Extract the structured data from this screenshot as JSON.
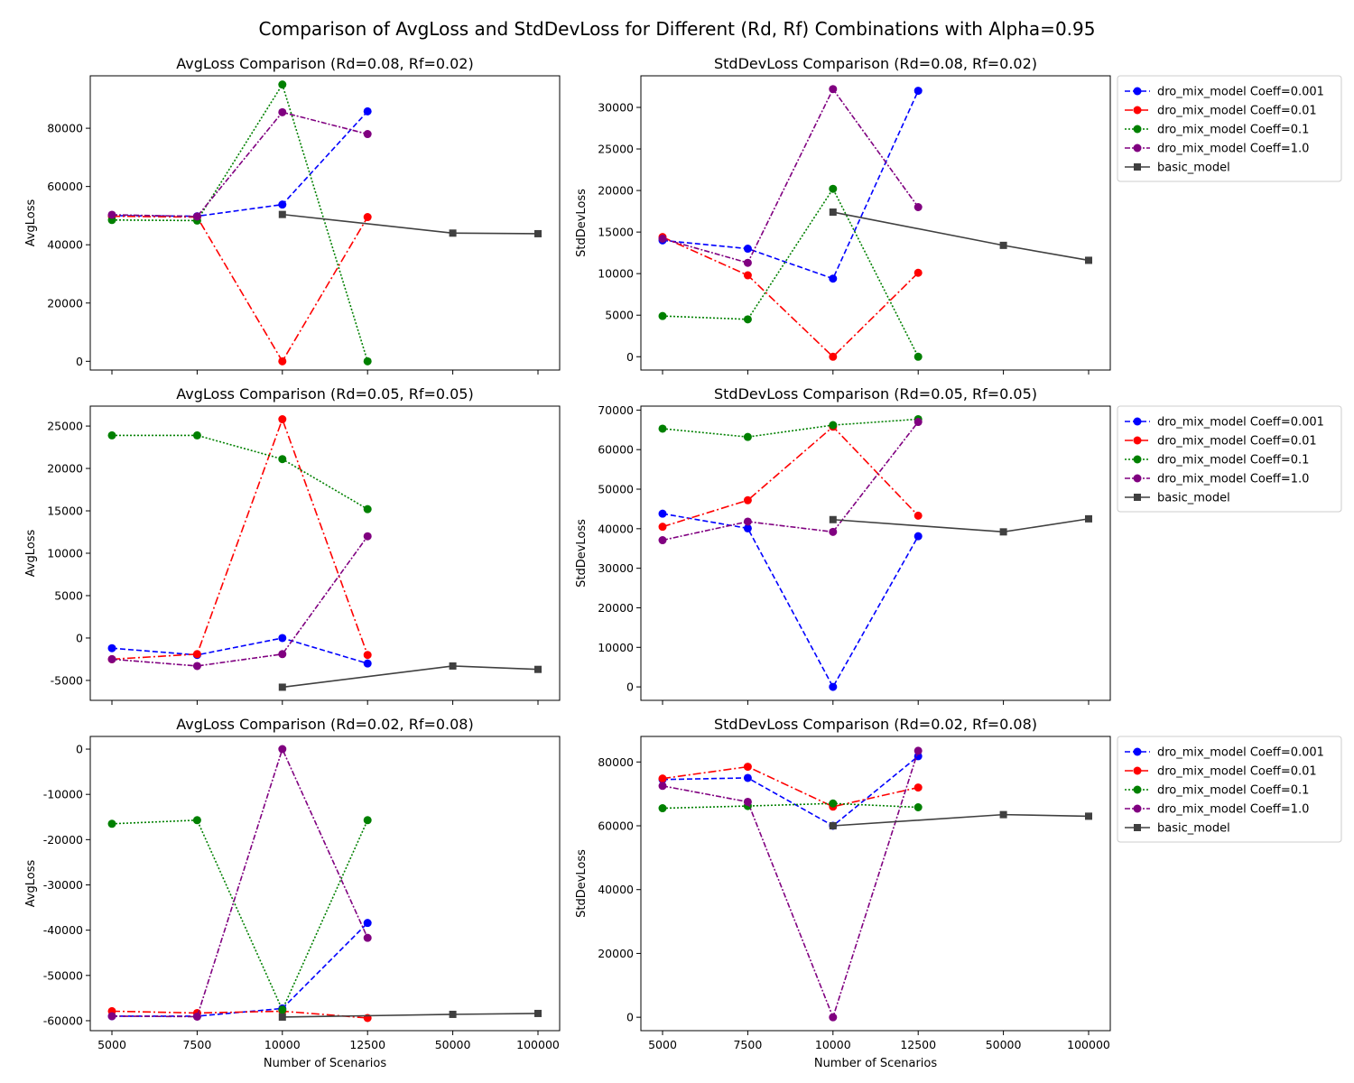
{
  "figure": {
    "title": "Comparison of AvgLoss and StdDevLoss for Different (Rd, Rf) Combinations with Alpha=0.95"
  },
  "chart_data": [
    {
      "type": "line",
      "row": 0,
      "col": 0,
      "title": "AvgLoss Comparison (Rd=0.08, Rf=0.02)",
      "xlabel": "",
      "ylabel": "AvgLoss",
      "categories": [
        "5000",
        "7500",
        "10000",
        "12500",
        "50000",
        "100000"
      ],
      "ylim": [
        -3000,
        98000
      ],
      "yticks": [
        0,
        20000,
        40000,
        60000,
        80000
      ],
      "legend": false,
      "series": [
        {
          "name": "dro_mix_model Coeff=0.001",
          "values": [
            50000,
            49800,
            53800,
            85800,
            null,
            null
          ]
        },
        {
          "name": "dro_mix_model Coeff=0.01",
          "values": [
            49800,
            49500,
            0,
            49500,
            null,
            null
          ]
        },
        {
          "name": "dro_mix_model Coeff=0.1",
          "values": [
            48500,
            48300,
            95000,
            0,
            null,
            null
          ]
        },
        {
          "name": "dro_mix_model Coeff=1.0",
          "values": [
            50300,
            49700,
            85500,
            78000,
            null,
            null
          ]
        },
        {
          "name": "basic_model",
          "values": [
            null,
            null,
            50400,
            null,
            44000,
            43800
          ]
        }
      ]
    },
    {
      "type": "line",
      "row": 0,
      "col": 1,
      "title": "StdDevLoss Comparison (Rd=0.08, Rf=0.02)",
      "xlabel": "",
      "ylabel": "StdDevLoss",
      "categories": [
        "5000",
        "7500",
        "10000",
        "12500",
        "50000",
        "100000"
      ],
      "ylim": [
        -1600,
        33800
      ],
      "yticks": [
        0,
        5000,
        10000,
        15000,
        20000,
        25000,
        30000
      ],
      "legend": true,
      "legend_loc": "outside upper right",
      "series": [
        {
          "name": "dro_mix_model Coeff=0.001",
          "values": [
            14000,
            13000,
            9400,
            32000,
            null,
            null
          ]
        },
        {
          "name": "dro_mix_model Coeff=0.01",
          "values": [
            14400,
            9800,
            0,
            10100,
            null,
            null
          ]
        },
        {
          "name": "dro_mix_model Coeff=0.1",
          "values": [
            4900,
            4500,
            20200,
            0,
            null,
            null
          ]
        },
        {
          "name": "dro_mix_model Coeff=1.0",
          "values": [
            14200,
            11300,
            32200,
            18000,
            null,
            null
          ]
        },
        {
          "name": "basic_model",
          "values": [
            null,
            null,
            17400,
            null,
            13400,
            11600
          ]
        }
      ]
    },
    {
      "type": "line",
      "row": 1,
      "col": 0,
      "title": "AvgLoss Comparison (Rd=0.05, Rf=0.05)",
      "xlabel": "",
      "ylabel": "AvgLoss",
      "categories": [
        "5000",
        "7500",
        "10000",
        "12500",
        "50000",
        "100000"
      ],
      "ylim": [
        -7350,
        27350
      ],
      "yticks": [
        -5000,
        0,
        5000,
        10000,
        15000,
        20000,
        25000
      ],
      "legend": false,
      "series": [
        {
          "name": "dro_mix_model Coeff=0.001",
          "values": [
            -1200,
            -2000,
            0,
            -3000,
            null,
            null
          ]
        },
        {
          "name": "dro_mix_model Coeff=0.01",
          "values": [
            -2500,
            -1900,
            25800,
            -2000,
            null,
            null
          ]
        },
        {
          "name": "dro_mix_model Coeff=0.1",
          "values": [
            23900,
            23900,
            21100,
            15200,
            null,
            null
          ]
        },
        {
          "name": "dro_mix_model Coeff=1.0",
          "values": [
            -2500,
            -3300,
            -1900,
            12000,
            null,
            null
          ]
        },
        {
          "name": "basic_model",
          "values": [
            null,
            null,
            -5800,
            null,
            -3300,
            -3700
          ]
        }
      ]
    },
    {
      "type": "line",
      "row": 1,
      "col": 1,
      "title": "StdDevLoss Comparison (Rd=0.05, Rf=0.05)",
      "xlabel": "",
      "ylabel": "StdDevLoss",
      "categories": [
        "5000",
        "7500",
        "10000",
        "12500",
        "50000",
        "100000"
      ],
      "ylim": [
        -3400,
        71000
      ],
      "yticks": [
        0,
        10000,
        20000,
        30000,
        40000,
        50000,
        60000,
        70000
      ],
      "legend": true,
      "legend_loc": "outside upper right",
      "series": [
        {
          "name": "dro_mix_model Coeff=0.001",
          "values": [
            43800,
            40100,
            0,
            38100,
            null,
            null
          ]
        },
        {
          "name": "dro_mix_model Coeff=0.01",
          "values": [
            40500,
            47200,
            65800,
            43300,
            null,
            null
          ]
        },
        {
          "name": "dro_mix_model Coeff=0.1",
          "values": [
            65300,
            63200,
            66200,
            67700,
            null,
            null
          ]
        },
        {
          "name": "dro_mix_model Coeff=1.0",
          "values": [
            37100,
            41800,
            39200,
            67000,
            null,
            null
          ]
        },
        {
          "name": "basic_model",
          "values": [
            null,
            null,
            42300,
            null,
            39200,
            42500
          ]
        }
      ]
    },
    {
      "type": "line",
      "row": 2,
      "col": 0,
      "title": "AvgLoss Comparison (Rd=0.02, Rf=0.08)",
      "xlabel": "Number of Scenarios",
      "ylabel": "AvgLoss",
      "categories": [
        "5000",
        "7500",
        "10000",
        "12500",
        "50000",
        "100000"
      ],
      "ylim": [
        -62200,
        2800
      ],
      "yticks": [
        -60000,
        -50000,
        -40000,
        -30000,
        -20000,
        -10000,
        0
      ],
      "legend": false,
      "series": [
        {
          "name": "dro_mix_model Coeff=0.001",
          "values": [
            -59000,
            -59000,
            -57300,
            -38400,
            null,
            null
          ]
        },
        {
          "name": "dro_mix_model Coeff=0.01",
          "values": [
            -57900,
            -58300,
            -57900,
            -59400,
            null,
            null
          ]
        },
        {
          "name": "dro_mix_model Coeff=0.1",
          "values": [
            -16500,
            -15700,
            -57600,
            -15700,
            null,
            null
          ]
        },
        {
          "name": "dro_mix_model Coeff=1.0",
          "values": [
            -59000,
            -59100,
            0,
            -41700,
            null,
            null
          ]
        },
        {
          "name": "basic_model",
          "values": [
            null,
            null,
            -59200,
            null,
            -58600,
            -58400
          ]
        }
      ]
    },
    {
      "type": "line",
      "row": 2,
      "col": 1,
      "title": "StdDevLoss Comparison (Rd=0.02, Rf=0.08)",
      "xlabel": "Number of Scenarios",
      "ylabel": "StdDevLoss",
      "categories": [
        "5000",
        "7500",
        "10000",
        "12500",
        "50000",
        "100000"
      ],
      "ylim": [
        -4200,
        88000
      ],
      "yticks": [
        0,
        20000,
        40000,
        60000,
        80000
      ],
      "legend": true,
      "legend_loc": "outside upper right",
      "series": [
        {
          "name": "dro_mix_model Coeff=0.001",
          "values": [
            74500,
            75000,
            60000,
            81800,
            null,
            null
          ]
        },
        {
          "name": "dro_mix_model Coeff=0.01",
          "values": [
            74800,
            78500,
            66000,
            72000,
            null,
            null
          ]
        },
        {
          "name": "dro_mix_model Coeff=0.1",
          "values": [
            65500,
            66200,
            67000,
            65800,
            null,
            null
          ]
        },
        {
          "name": "dro_mix_model Coeff=1.0",
          "values": [
            72500,
            67500,
            0,
            83500,
            null,
            null
          ]
        },
        {
          "name": "basic_model",
          "values": [
            null,
            null,
            60000,
            null,
            63500,
            63000
          ]
        }
      ]
    }
  ],
  "styles": [
    {
      "name": "dro_mix_model Coeff=0.001",
      "color": "#0000ff",
      "dash": "6,3",
      "marker": "circle"
    },
    {
      "name": "dro_mix_model Coeff=0.01",
      "color": "#ff0000",
      "dash": "9,3,2,3",
      "marker": "circle"
    },
    {
      "name": "dro_mix_model Coeff=0.1",
      "color": "#008000",
      "dash": "2,2",
      "marker": "circle"
    },
    {
      "name": "dro_mix_model Coeff=1.0",
      "color": "#800080",
      "dash": "6,2,2,2",
      "marker": "circle"
    },
    {
      "name": "basic_model",
      "color": "#404040",
      "dash": "",
      "marker": "square"
    }
  ]
}
